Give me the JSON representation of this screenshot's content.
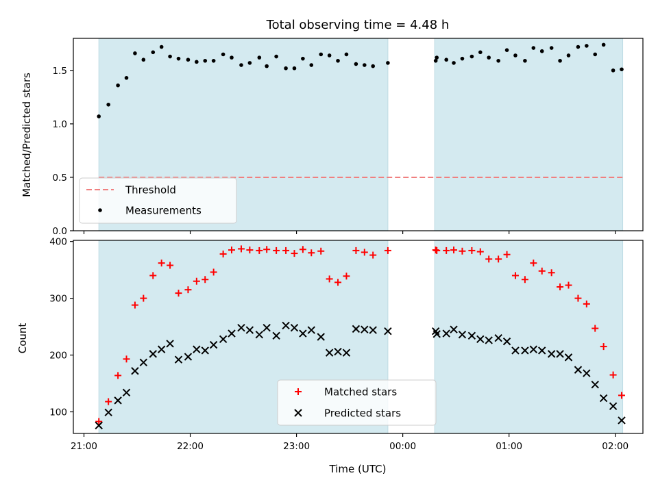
{
  "chart_data": [
    {
      "type": "scatter",
      "title": "Total observing time = 4.48 h",
      "ylabel": "Matched/Predicted stars",
      "xlabel": "",
      "x_unit": "hours after 21:00 UTC",
      "xlim": [
        -0.1,
        5.26
      ],
      "ylim": [
        0.0,
        1.8
      ],
      "yticks": [
        {
          "v": 0.0,
          "label": "0.0"
        },
        {
          "v": 0.5,
          "label": "0.5"
        },
        {
          "v": 1.0,
          "label": "1.0"
        },
        {
          "v": 1.5,
          "label": "1.5"
        }
      ],
      "xticks": [
        {
          "v": 0,
          "label": ""
        },
        {
          "v": 1,
          "label": ""
        },
        {
          "v": 2,
          "label": ""
        },
        {
          "v": 3,
          "label": ""
        },
        {
          "v": 4,
          "label": ""
        },
        {
          "v": 5,
          "label": ""
        }
      ],
      "shaded_intervals": [
        [
          0.14,
          2.86
        ],
        [
          3.3,
          5.07
        ]
      ],
      "threshold": 0.5,
      "legend": [
        {
          "label": "Threshold",
          "style": "dashed-line",
          "color": "#f08080"
        },
        {
          "label": "Measurements",
          "style": "dot",
          "color": "#000000"
        }
      ],
      "legend_position": "lower-left",
      "series": [
        {
          "name": "Measurements",
          "color": "#000000",
          "points": [
            [
              0.14,
              1.07
            ],
            [
              0.23,
              1.18
            ],
            [
              0.32,
              1.36
            ],
            [
              0.4,
              1.43
            ],
            [
              0.48,
              1.66
            ],
            [
              0.56,
              1.6
            ],
            [
              0.65,
              1.67
            ],
            [
              0.73,
              1.72
            ],
            [
              0.81,
              1.63
            ],
            [
              0.89,
              1.61
            ],
            [
              0.98,
              1.6
            ],
            [
              1.06,
              1.58
            ],
            [
              1.14,
              1.59
            ],
            [
              1.22,
              1.59
            ],
            [
              1.31,
              1.65
            ],
            [
              1.39,
              1.62
            ],
            [
              1.48,
              1.55
            ],
            [
              1.56,
              1.57
            ],
            [
              1.65,
              1.62
            ],
            [
              1.72,
              1.54
            ],
            [
              1.81,
              1.63
            ],
            [
              1.9,
              1.52
            ],
            [
              1.98,
              1.52
            ],
            [
              2.06,
              1.61
            ],
            [
              2.14,
              1.55
            ],
            [
              2.23,
              1.65
            ],
            [
              2.31,
              1.64
            ],
            [
              2.39,
              1.59
            ],
            [
              2.47,
              1.65
            ],
            [
              2.56,
              1.56
            ],
            [
              2.64,
              1.55
            ],
            [
              2.72,
              1.54
            ],
            [
              2.86,
              1.57
            ],
            [
              3.31,
              1.59
            ],
            [
              3.32,
              1.62
            ],
            [
              3.41,
              1.6
            ],
            [
              3.48,
              1.57
            ],
            [
              3.56,
              1.61
            ],
            [
              3.65,
              1.63
            ],
            [
              3.73,
              1.67
            ],
            [
              3.81,
              1.62
            ],
            [
              3.9,
              1.59
            ],
            [
              3.98,
              1.69
            ],
            [
              4.06,
              1.64
            ],
            [
              4.15,
              1.59
            ],
            [
              4.23,
              1.71
            ],
            [
              4.31,
              1.68
            ],
            [
              4.4,
              1.71
            ],
            [
              4.48,
              1.59
            ],
            [
              4.56,
              1.64
            ],
            [
              4.65,
              1.72
            ],
            [
              4.73,
              1.73
            ],
            [
              4.81,
              1.65
            ],
            [
              4.89,
              1.74
            ],
            [
              4.98,
              1.5
            ],
            [
              5.06,
              1.51
            ]
          ]
        }
      ]
    },
    {
      "type": "scatter",
      "title": "",
      "ylabel": "Count",
      "xlabel": "Time (UTC)",
      "x_unit": "hours after 21:00 UTC",
      "xlim": [
        -0.1,
        5.26
      ],
      "ylim": [
        62,
        402
      ],
      "yticks": [
        {
          "v": 100,
          "label": "100"
        },
        {
          "v": 200,
          "label": "200"
        },
        {
          "v": 300,
          "label": "300"
        },
        {
          "v": 400,
          "label": "400"
        }
      ],
      "xticks": [
        {
          "v": 0,
          "label": "21:00"
        },
        {
          "v": 1,
          "label": "22:00"
        },
        {
          "v": 2,
          "label": "23:00"
        },
        {
          "v": 3,
          "label": "00:00"
        },
        {
          "v": 4,
          "label": "01:00"
        },
        {
          "v": 5,
          "label": "02:00"
        }
      ],
      "shaded_intervals": [
        [
          0.14,
          2.86
        ],
        [
          3.3,
          5.07
        ]
      ],
      "legend": [
        {
          "label": "Matched stars",
          "style": "plus",
          "color": "#ff0000"
        },
        {
          "label": "Predicted stars",
          "style": "cross",
          "color": "#000000"
        }
      ],
      "legend_position": "lower-center",
      "series": [
        {
          "name": "Matched stars",
          "marker": "plus",
          "color": "#ff0000",
          "points": [
            [
              0.14,
              83
            ],
            [
              0.23,
              118
            ],
            [
              0.32,
              164
            ],
            [
              0.4,
              193
            ],
            [
              0.48,
              288
            ],
            [
              0.56,
              300
            ],
            [
              0.65,
              340
            ],
            [
              0.73,
              362
            ],
            [
              0.81,
              358
            ],
            [
              0.89,
              309
            ],
            [
              0.98,
              315
            ],
            [
              1.06,
              330
            ],
            [
              1.14,
              333
            ],
            [
              1.22,
              346
            ],
            [
              1.31,
              378
            ],
            [
              1.39,
              385
            ],
            [
              1.48,
              387
            ],
            [
              1.56,
              385
            ],
            [
              1.65,
              384
            ],
            [
              1.72,
              386
            ],
            [
              1.81,
              384
            ],
            [
              1.9,
              384
            ],
            [
              1.98,
              379
            ],
            [
              2.06,
              386
            ],
            [
              2.14,
              380
            ],
            [
              2.23,
              383
            ],
            [
              2.31,
              334
            ],
            [
              2.39,
              328
            ],
            [
              2.47,
              339
            ],
            [
              2.56,
              384
            ],
            [
              2.64,
              381
            ],
            [
              2.72,
              376
            ],
            [
              2.86,
              384
            ],
            [
              3.31,
              385
            ],
            [
              3.32,
              384
            ],
            [
              3.41,
              384
            ],
            [
              3.48,
              385
            ],
            [
              3.56,
              383
            ],
            [
              3.65,
              384
            ],
            [
              3.73,
              382
            ],
            [
              3.81,
              369
            ],
            [
              3.9,
              369
            ],
            [
              3.98,
              377
            ],
            [
              4.06,
              340
            ],
            [
              4.15,
              333
            ],
            [
              4.23,
              362
            ],
            [
              4.31,
              348
            ],
            [
              4.4,
              345
            ],
            [
              4.48,
              320
            ],
            [
              4.56,
              323
            ],
            [
              4.65,
              300
            ],
            [
              4.73,
              290
            ],
            [
              4.81,
              247
            ],
            [
              4.89,
              215
            ],
            [
              4.98,
              165
            ],
            [
              5.06,
              129
            ]
          ]
        },
        {
          "name": "Predicted stars",
          "marker": "cross",
          "color": "#000000",
          "points": [
            [
              0.14,
              76
            ],
            [
              0.23,
              99
            ],
            [
              0.32,
              120
            ],
            [
              0.4,
              134
            ],
            [
              0.48,
              172
            ],
            [
              0.56,
              187
            ],
            [
              0.65,
              202
            ],
            [
              0.73,
              210
            ],
            [
              0.81,
              220
            ],
            [
              0.89,
              192
            ],
            [
              0.98,
              197
            ],
            [
              1.06,
              210
            ],
            [
              1.14,
              208
            ],
            [
              1.22,
              218
            ],
            [
              1.31,
              228
            ],
            [
              1.39,
              238
            ],
            [
              1.48,
              248
            ],
            [
              1.56,
              244
            ],
            [
              1.65,
              236
            ],
            [
              1.72,
              248
            ],
            [
              1.81,
              234
            ],
            [
              1.9,
              252
            ],
            [
              1.98,
              248
            ],
            [
              2.06,
              238
            ],
            [
              2.14,
              244
            ],
            [
              2.23,
              232
            ],
            [
              2.31,
              204
            ],
            [
              2.39,
              206
            ],
            [
              2.47,
              204
            ],
            [
              2.56,
              246
            ],
            [
              2.64,
              245
            ],
            [
              2.72,
              244
            ],
            [
              2.86,
              242
            ],
            [
              3.31,
              242
            ],
            [
              3.32,
              237
            ],
            [
              3.41,
              238
            ],
            [
              3.48,
              245
            ],
            [
              3.56,
              236
            ],
            [
              3.65,
              234
            ],
            [
              3.73,
              228
            ],
            [
              3.81,
              226
            ],
            [
              3.9,
              230
            ],
            [
              3.98,
              224
            ],
            [
              4.06,
              208
            ],
            [
              4.15,
              208
            ],
            [
              4.23,
              210
            ],
            [
              4.31,
              208
            ],
            [
              4.4,
              202
            ],
            [
              4.48,
              202
            ],
            [
              4.56,
              196
            ],
            [
              4.65,
              174
            ],
            [
              4.73,
              168
            ],
            [
              4.81,
              148
            ],
            [
              4.89,
              124
            ],
            [
              4.98,
              110
            ],
            [
              5.06,
              85
            ]
          ]
        }
      ]
    }
  ]
}
